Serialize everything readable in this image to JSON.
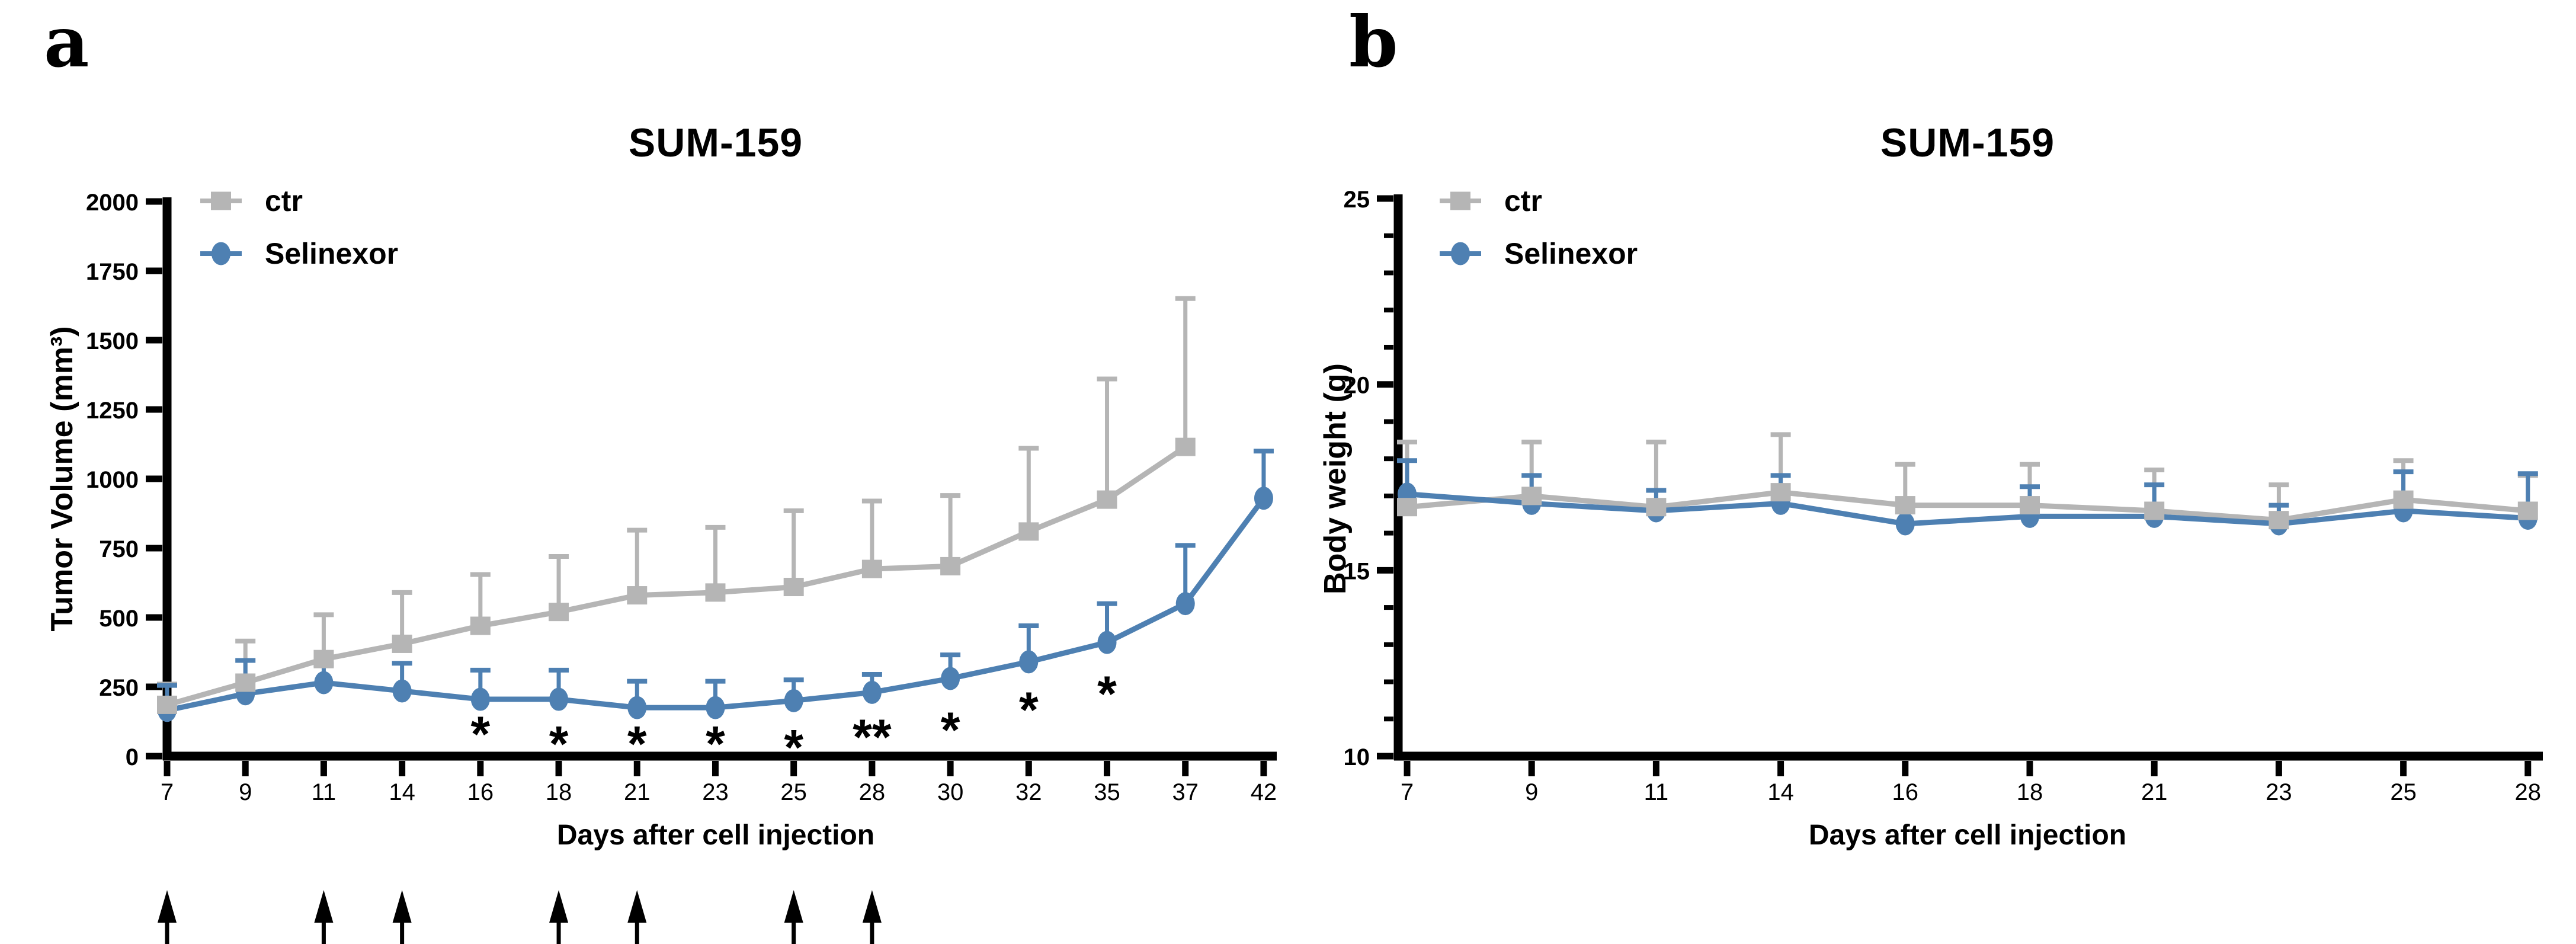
{
  "figure": {
    "background": "#ffffff",
    "axis_color": "#000000"
  },
  "chart_data": [
    {
      "panel_label": "a",
      "type": "line",
      "title": "SUM-159",
      "xlabel": "Days after cell injection",
      "ylabel": "Tumor Volume (mm³)",
      "x_categories": [
        7,
        9,
        11,
        14,
        16,
        18,
        21,
        23,
        25,
        28,
        30,
        32,
        35,
        37,
        42
      ],
      "ylim": [
        0,
        2000
      ],
      "yticks": [
        0,
        250,
        500,
        750,
        1000,
        1250,
        1500,
        1750,
        2000
      ],
      "y_minor_step": null,
      "legend_position": "top-left",
      "grid": false,
      "error_bars": "sd-upper",
      "series": [
        {
          "name": "ctr",
          "color": "#b5b5b5",
          "marker": "square",
          "values": [
            185,
            265,
            350,
            405,
            470,
            520,
            580,
            590,
            610,
            675,
            685,
            810,
            925,
            1115,
            null
          ],
          "sd": [
            75,
            150,
            160,
            185,
            185,
            200,
            235,
            235,
            275,
            245,
            255,
            300,
            435,
            535,
            null
          ]
        },
        {
          "name": "Selinexor",
          "color": "#4e80b2",
          "marker": "circle",
          "values": [
            165,
            225,
            265,
            235,
            205,
            205,
            175,
            175,
            200,
            230,
            280,
            340,
            410,
            550,
            930
          ],
          "sd": [
            90,
            120,
            65,
            100,
            105,
            105,
            95,
            95,
            75,
            65,
            85,
            130,
            140,
            210,
            170
          ]
        }
      ],
      "significance": [
        {
          "x": 16,
          "label": "*",
          "y": 110
        },
        {
          "x": 18,
          "label": "*",
          "y": 75
        },
        {
          "x": 21,
          "label": "*",
          "y": 75
        },
        {
          "x": 23,
          "label": "*",
          "y": 75
        },
        {
          "x": 25,
          "label": "*",
          "y": 62
        },
        {
          "x": 28,
          "label": "**",
          "y": 99
        },
        {
          "x": 30,
          "label": "*",
          "y": 125
        },
        {
          "x": 32,
          "label": "*",
          "y": 198
        },
        {
          "x": 35,
          "label": "*",
          "y": 255
        }
      ],
      "treatment_arrow_days": [
        7,
        11,
        14,
        18,
        21,
        25,
        28
      ]
    },
    {
      "panel_label": "b",
      "type": "line",
      "title": "SUM-159",
      "xlabel": "Days after cell injection",
      "ylabel": "Body weight (g)",
      "x_categories": [
        7,
        9,
        11,
        14,
        16,
        18,
        21,
        23,
        25,
        28
      ],
      "ylim": [
        10,
        25
      ],
      "yticks": [
        10,
        15,
        20,
        25
      ],
      "y_minor_step": 1,
      "legend_position": "top-left",
      "grid": false,
      "error_bars": "sd-upper",
      "series": [
        {
          "name": "ctr",
          "color": "#b5b5b5",
          "marker": "square",
          "values": [
            16.7,
            17.0,
            16.7,
            17.1,
            16.75,
            16.75,
            16.6,
            16.35,
            16.9,
            16.6
          ],
          "sd": [
            1.75,
            1.45,
            1.75,
            1.55,
            1.1,
            1.1,
            1.1,
            0.95,
            1.05,
            0.95
          ]
        },
        {
          "name": "Selinexor",
          "color": "#4e80b2",
          "marker": "circle",
          "values": [
            17.05,
            16.8,
            16.6,
            16.8,
            16.25,
            16.45,
            16.45,
            16.25,
            16.6,
            16.4
          ],
          "sd": [
            0.9,
            0.75,
            0.55,
            0.75,
            0.5,
            0.8,
            0.85,
            0.5,
            1.05,
            1.2
          ]
        }
      ],
      "significance": [],
      "treatment_arrow_days": []
    }
  ]
}
